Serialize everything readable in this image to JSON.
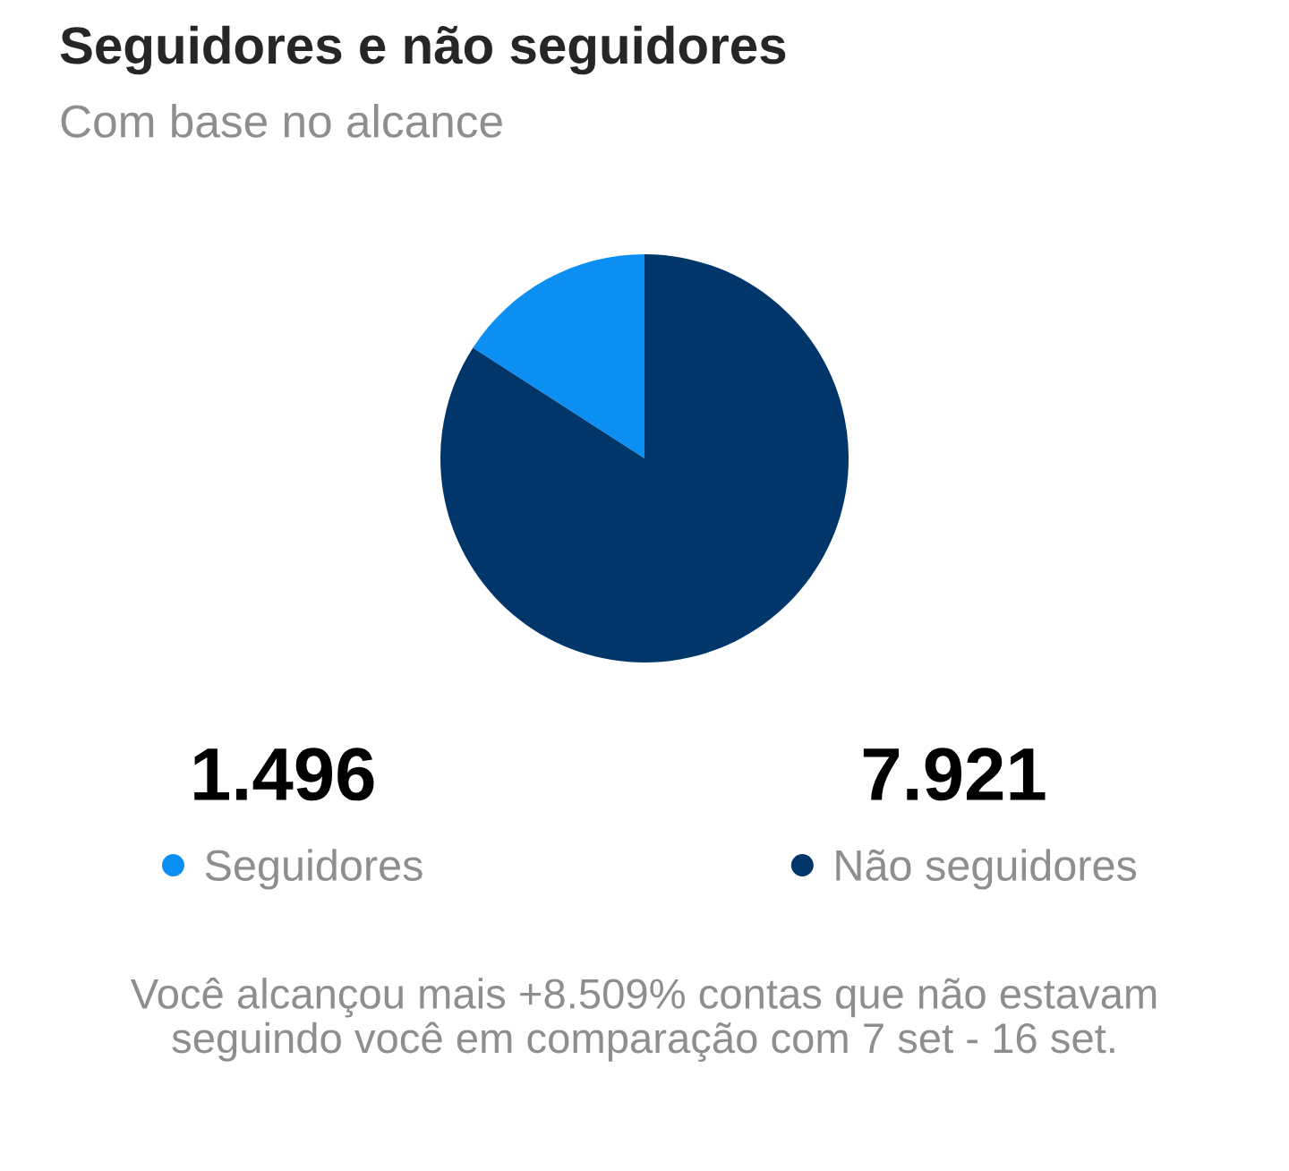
{
  "chart_data": {
    "type": "pie",
    "title": "Seguidores e não seguidores",
    "subtitle": "Com base no alcance",
    "categories": [
      "Seguidores",
      "Não seguidores"
    ],
    "values": [
      1496,
      7921
    ],
    "colors": [
      "#0c8ff2",
      "#00366a"
    ],
    "value_labels": [
      "1.496",
      "7.921"
    ],
    "legend": "bottom",
    "annotations": [
      "Você alcançou mais +8.509% contas que não estavam seguindo você em comparação com 7 set - 16 set."
    ]
  }
}
